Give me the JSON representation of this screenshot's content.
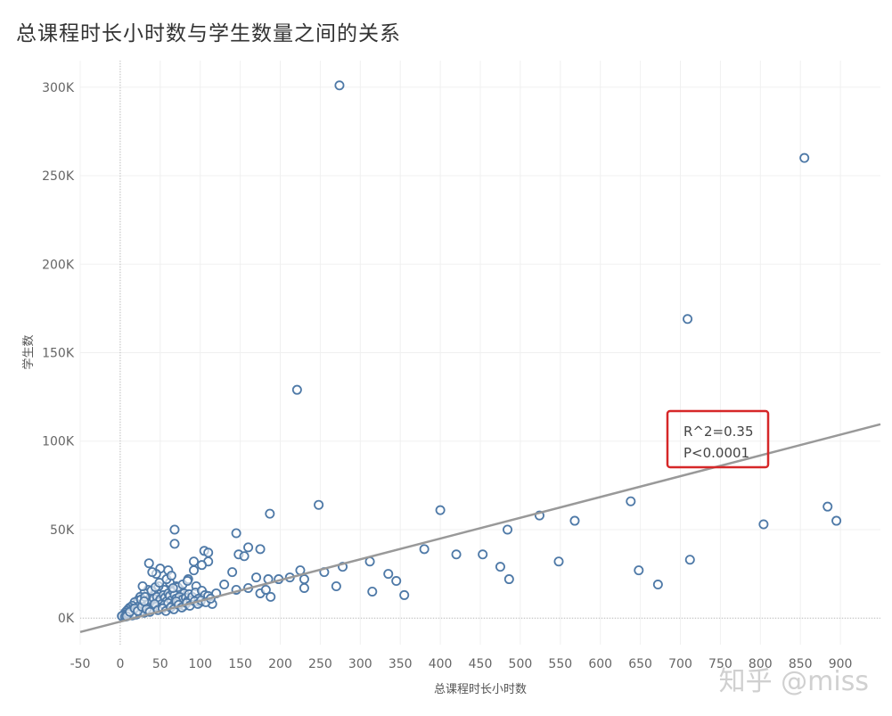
{
  "chart_data": {
    "type": "scatter",
    "title": "总课程时长小时数与学生数量之间的关系",
    "xlabel": "总课程时长小时数",
    "ylabel": "学生数",
    "xlim": [
      -50,
      950
    ],
    "ylim": [
      -15000,
      315000
    ],
    "x_ticks": [
      -50,
      0,
      50,
      100,
      150,
      200,
      250,
      300,
      350,
      400,
      450,
      500,
      550,
      600,
      650,
      700,
      750,
      800,
      850,
      900
    ],
    "y_ticks": [
      0,
      50000,
      100000,
      150000,
      200000,
      250000,
      300000
    ],
    "y_tick_labels": [
      "0K",
      "50K",
      "100K",
      "150K",
      "200K",
      "250K",
      "300K"
    ],
    "grid": true,
    "marker_color": "#4e79a7",
    "trend_color": "#999999",
    "trendline": {
      "slope": 117.4,
      "intercept": -2000
    },
    "annotation": {
      "lines": [
        "R^2=0.35",
        "P<0.0001"
      ],
      "border_color": "#d62728"
    },
    "points": [
      [
        274,
        301000
      ],
      [
        855,
        260000
      ],
      [
        709,
        169000
      ],
      [
        221,
        129000
      ],
      [
        400,
        61000
      ],
      [
        248,
        64000
      ],
      [
        187,
        59000
      ],
      [
        524,
        58000
      ],
      [
        568,
        55000
      ],
      [
        638,
        66000
      ],
      [
        804,
        53000
      ],
      [
        884,
        63000
      ],
      [
        895,
        55000
      ],
      [
        484,
        50000
      ],
      [
        68,
        50000
      ],
      [
        145,
        48000
      ],
      [
        68,
        42000
      ],
      [
        160,
        40000
      ],
      [
        175,
        39000
      ],
      [
        380,
        39000
      ],
      [
        420,
        36000
      ],
      [
        453,
        36000
      ],
      [
        105,
        38000
      ],
      [
        110,
        37000
      ],
      [
        148,
        36000
      ],
      [
        155,
        35000
      ],
      [
        712,
        33000
      ],
      [
        548,
        32000
      ],
      [
        312,
        32000
      ],
      [
        92,
        32000
      ],
      [
        110,
        32000
      ],
      [
        102,
        30000
      ],
      [
        36,
        31000
      ],
      [
        278,
        29000
      ],
      [
        225,
        27000
      ],
      [
        255,
        26000
      ],
      [
        335,
        25000
      ],
      [
        140,
        26000
      ],
      [
        475,
        29000
      ],
      [
        648,
        27000
      ],
      [
        486,
        22000
      ],
      [
        345,
        21000
      ],
      [
        672,
        19000
      ],
      [
        270,
        18000
      ],
      [
        230,
        17000
      ],
      [
        355,
        13000
      ],
      [
        315,
        15000
      ],
      [
        230,
        22000
      ],
      [
        212,
        23000
      ],
      [
        198,
        22000
      ],
      [
        185,
        22000
      ],
      [
        170,
        23000
      ],
      [
        130,
        19000
      ],
      [
        145,
        16000
      ],
      [
        160,
        17000
      ],
      [
        175,
        14000
      ],
      [
        182,
        16000
      ],
      [
        188,
        12000
      ],
      [
        120,
        14000
      ],
      [
        115,
        8000
      ],
      [
        100,
        9000
      ],
      [
        95,
        18000
      ],
      [
        92,
        27000
      ],
      [
        85,
        22000
      ],
      [
        60,
        27000
      ],
      [
        50,
        28000
      ],
      [
        45,
        25000
      ],
      [
        40,
        26000
      ],
      [
        62,
        20000
      ],
      [
        70,
        18000
      ],
      [
        75,
        16000
      ],
      [
        80,
        14000
      ],
      [
        55,
        16000
      ],
      [
        48,
        18000
      ],
      [
        42,
        14000
      ],
      [
        38,
        12000
      ],
      [
        35,
        16000
      ],
      [
        30,
        14000
      ],
      [
        28,
        18000
      ],
      [
        25,
        12000
      ],
      [
        22,
        10000
      ],
      [
        20,
        8000
      ],
      [
        18,
        9000
      ],
      [
        15,
        7000
      ],
      [
        12,
        6000
      ],
      [
        10,
        5000
      ],
      [
        8,
        4000
      ],
      [
        6,
        3000
      ],
      [
        5,
        2000
      ],
      [
        4,
        1500
      ],
      [
        3,
        1000
      ],
      [
        2,
        1200
      ],
      [
        6,
        800
      ],
      [
        9,
        1800
      ],
      [
        12,
        2500
      ],
      [
        14,
        4000
      ],
      [
        16,
        5000
      ],
      [
        18,
        3000
      ],
      [
        20,
        4500
      ],
      [
        22,
        6000
      ],
      [
        24,
        7000
      ],
      [
        26,
        5500
      ],
      [
        28,
        8000
      ],
      [
        30,
        9000
      ],
      [
        32,
        7000
      ],
      [
        34,
        10000
      ],
      [
        36,
        8500
      ],
      [
        38,
        6500
      ],
      [
        40,
        9500
      ],
      [
        42,
        11000
      ],
      [
        44,
        7500
      ],
      [
        46,
        12000
      ],
      [
        48,
        9000
      ],
      [
        50,
        10500
      ],
      [
        52,
        8000
      ],
      [
        54,
        13000
      ],
      [
        56,
        11500
      ],
      [
        58,
        9500
      ],
      [
        60,
        14000
      ],
      [
        62,
        12500
      ],
      [
        64,
        10000
      ],
      [
        66,
        15000
      ],
      [
        68,
        13000
      ],
      [
        70,
        11000
      ],
      [
        72,
        9000
      ],
      [
        74,
        12000
      ],
      [
        76,
        8000
      ],
      [
        78,
        10500
      ],
      [
        80,
        7000
      ],
      [
        82,
        11500
      ],
      [
        84,
        9500
      ],
      [
        86,
        13500
      ],
      [
        88,
        10000
      ],
      [
        90,
        12000
      ],
      [
        94,
        14500
      ],
      [
        98,
        11000
      ],
      [
        102,
        15500
      ],
      [
        106,
        13000
      ],
      [
        110,
        12500
      ],
      [
        20,
        2000
      ],
      [
        25,
        3500
      ],
      [
        30,
        3000
      ],
      [
        35,
        4500
      ],
      [
        40,
        5000
      ],
      [
        45,
        6500
      ],
      [
        50,
        6000
      ],
      [
        55,
        7500
      ],
      [
        60,
        8500
      ],
      [
        65,
        7000
      ],
      [
        70,
        9500
      ],
      [
        15,
        1500
      ],
      [
        10,
        2500
      ],
      [
        8,
        1000
      ],
      [
        12,
        3500
      ],
      [
        18,
        5500
      ],
      [
        22,
        4000
      ],
      [
        27,
        6500
      ],
      [
        33,
        5000
      ],
      [
        37,
        3500
      ],
      [
        43,
        8000
      ],
      [
        47,
        4500
      ],
      [
        53,
        5500
      ],
      [
        57,
        4000
      ],
      [
        63,
        6000
      ],
      [
        67,
        5000
      ],
      [
        73,
        7500
      ],
      [
        77,
        6000
      ],
      [
        83,
        8500
      ],
      [
        87,
        7000
      ],
      [
        93,
        9500
      ],
      [
        97,
        8000
      ],
      [
        101,
        10000
      ],
      [
        107,
        9000
      ],
      [
        113,
        11000
      ],
      [
        26,
        10500
      ],
      [
        31,
        12000
      ],
      [
        39,
        15500
      ],
      [
        44,
        17500
      ],
      [
        49,
        20000
      ],
      [
        58,
        22000
      ],
      [
        64,
        24000
      ],
      [
        72,
        17500
      ],
      [
        78,
        19000
      ],
      [
        84,
        21000
      ],
      [
        66,
        17000
      ],
      [
        30,
        9500
      ]
    ]
  },
  "watermark": "知乎 @miss"
}
